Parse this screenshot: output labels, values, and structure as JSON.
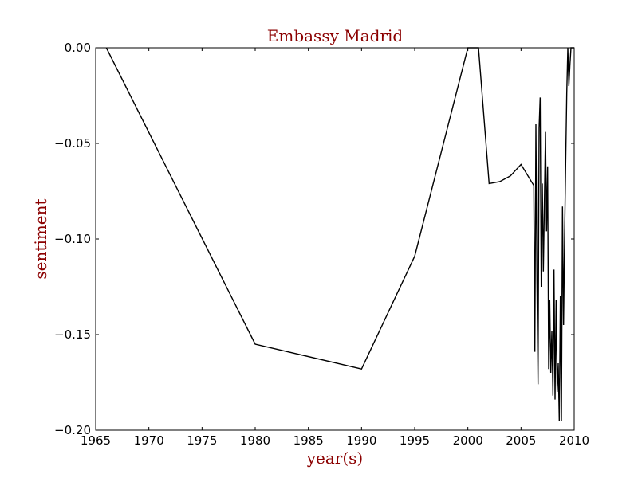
{
  "chart_data": {
    "type": "line",
    "title": "Embassy Madrid",
    "xlabel": "year(s)",
    "ylabel": "sentiment",
    "xlim": [
      1965,
      2010
    ],
    "ylim": [
      -0.2,
      0.0
    ],
    "xticks": [
      1965,
      1970,
      1975,
      1980,
      1985,
      1990,
      1995,
      2000,
      2005,
      2010
    ],
    "xtick_labels": [
      "1965",
      "1970",
      "1975",
      "1980",
      "1985",
      "1990",
      "1995",
      "2000",
      "2005",
      "2010"
    ],
    "yticks": [
      0.0,
      -0.05,
      -0.1,
      -0.15,
      -0.2
    ],
    "ytick_labels": [
      "0.00",
      "−0.05",
      "−0.10",
      "−0.15",
      "−0.20"
    ],
    "grid": false,
    "legend": "none",
    "colors": {
      "line": "#000000",
      "label_text": "#8b0000",
      "tick_text": "#000000"
    },
    "series": [
      {
        "x": [
          1966.0,
          1980.0,
          1990.0,
          1995.0,
          2000.0,
          2001.0,
          2002.0,
          2003.0,
          2004.0,
          2005.0,
          2006.2,
          2006.3,
          2006.4,
          2006.5,
          2006.6,
          2006.7,
          2006.8,
          2006.9,
          2007.0,
          2007.1,
          2007.2,
          2007.3,
          2007.4,
          2007.5,
          2007.6,
          2007.7,
          2007.8,
          2007.9,
          2008.0,
          2008.1,
          2008.2,
          2008.3,
          2008.4,
          2008.5,
          2008.6,
          2008.7,
          2008.8,
          2008.9,
          2009.0,
          2009.1,
          2009.2,
          2009.3,
          2009.4,
          2009.5,
          2009.6,
          2009.7,
          2009.8,
          2009.9,
          2010.0
        ],
        "y": [
          0.0,
          -0.155,
          -0.168,
          -0.109,
          0.0,
          0.0,
          -0.071,
          -0.07,
          -0.067,
          -0.061,
          -0.072,
          -0.159,
          -0.04,
          -0.122,
          -0.176,
          -0.042,
          -0.026,
          -0.125,
          -0.071,
          -0.117,
          -0.08,
          -0.044,
          -0.096,
          -0.062,
          -0.168,
          -0.132,
          -0.17,
          -0.148,
          -0.182,
          -0.116,
          -0.184,
          -0.132,
          -0.18,
          -0.165,
          -0.195,
          -0.13,
          -0.195,
          -0.083,
          -0.145,
          -0.098,
          -0.06,
          -0.024,
          0.0,
          -0.02,
          -0.009,
          0.0,
          0.0,
          0.0,
          0.0
        ]
      }
    ]
  }
}
